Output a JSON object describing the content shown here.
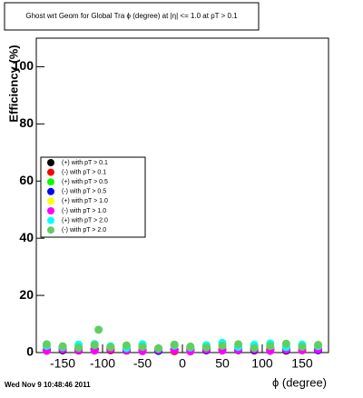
{
  "chart_data": {
    "type": "scatter",
    "title": "Ghost wrt Geom for Global Tra ϕ (degree) at |η| <= 1.0 at pT > 0.1",
    "x_label": "ϕ (degree)",
    "y_label": "Efficiency (%)",
    "footer": "Wed Nov  9 10:48:46 2011",
    "x": [
      -170,
      -150,
      -130,
      -110,
      -105,
      -90,
      -70,
      -50,
      -30,
      -10,
      10,
      30,
      50,
      70,
      90,
      110,
      130,
      150,
      170
    ],
    "series": [
      {
        "name": "(+) with pT > 0.1",
        "color": "#000000",
        "values": [
          1.2,
          0.8,
          1.5,
          0.9,
          null,
          1.1,
          0.7,
          1.3,
          0.6,
          1.0,
          0.9,
          1.4,
          1.1,
          0.8,
          1.2,
          1.0,
          0.7,
          1.3,
          0.9
        ]
      },
      {
        "name": "(-) with pT > 0.1",
        "color": "#ff0000",
        "values": [
          0.9,
          1.4,
          0.7,
          1.2,
          null,
          0.8,
          1.3,
          0.6,
          1.1,
          0.5,
          1.2,
          0.8,
          1.0,
          1.3,
          0.7,
          1.5,
          1.1,
          0.8,
          1.2
        ]
      },
      {
        "name": "(+) with pT > 0.5",
        "color": "#00ff00",
        "values": [
          1.8,
          1.2,
          2.1,
          1.5,
          null,
          1.9,
          1.1,
          2.3,
          0.9,
          1.4,
          1.6,
          2.0,
          1.3,
          1.7,
          2.2,
          1.2,
          1.9,
          1.5,
          2.4
        ]
      },
      {
        "name": "(-) with pT > 0.5",
        "color": "#0000ff",
        "values": [
          1.0,
          1.6,
          0.8,
          1.3,
          null,
          1.1,
          0.9,
          1.5,
          0.7,
          1.2,
          1.0,
          0.8,
          1.4,
          1.1,
          0.9,
          1.3,
          1.0,
          1.6,
          0.8
        ]
      },
      {
        "name": "(+) with pT > 1.0",
        "color": "#ffff00",
        "values": [
          2.0,
          1.5,
          1.8,
          2.3,
          null,
          1.4,
          2.1,
          1.7,
          1.2,
          1.9,
          1.6,
          2.2,
          1.8,
          1.3,
          2.0,
          1.7,
          2.5,
          1.4,
          1.9
        ]
      },
      {
        "name": "(-) with pT > 1.0",
        "color": "#ff00ff",
        "values": [
          0.6,
          1.1,
          0.9,
          0.7,
          null,
          1.2,
          0.8,
          0.5,
          1.0,
          0.9,
          0.4,
          1.1,
          0.7,
          0.9,
          1.2,
          0.6,
          1.0,
          0.8,
          1.1
        ]
      },
      {
        "name": "(+) with pT > 2.0",
        "color": "#00ffff",
        "values": [
          2.4,
          1.9,
          2.8,
          3.0,
          null,
          2.2,
          1.6,
          2.9,
          1.4,
          2.5,
          1.8,
          2.6,
          3.4,
          2.0,
          2.7,
          3.2,
          1.9,
          2.8,
          2.3
        ]
      },
      {
        "name": "(-) with pT > 2.0",
        "color": "#5fcf5f",
        "values": [
          2.9,
          2.2,
          1.7,
          2.6,
          8.0,
          1.9,
          2.5,
          2.0,
          1.5,
          2.8,
          2.1,
          1.8,
          2.4,
          2.9,
          1.6,
          2.3,
          3.1,
          2.0,
          2.7
        ]
      }
    ],
    "xlim": [
      -183,
      183
    ],
    "ylim": [
      0,
      110
    ],
    "xticks": [
      -150,
      -100,
      -50,
      0,
      50,
      100,
      150
    ],
    "yticks": [
      0,
      20,
      40,
      60,
      80,
      100
    ]
  }
}
